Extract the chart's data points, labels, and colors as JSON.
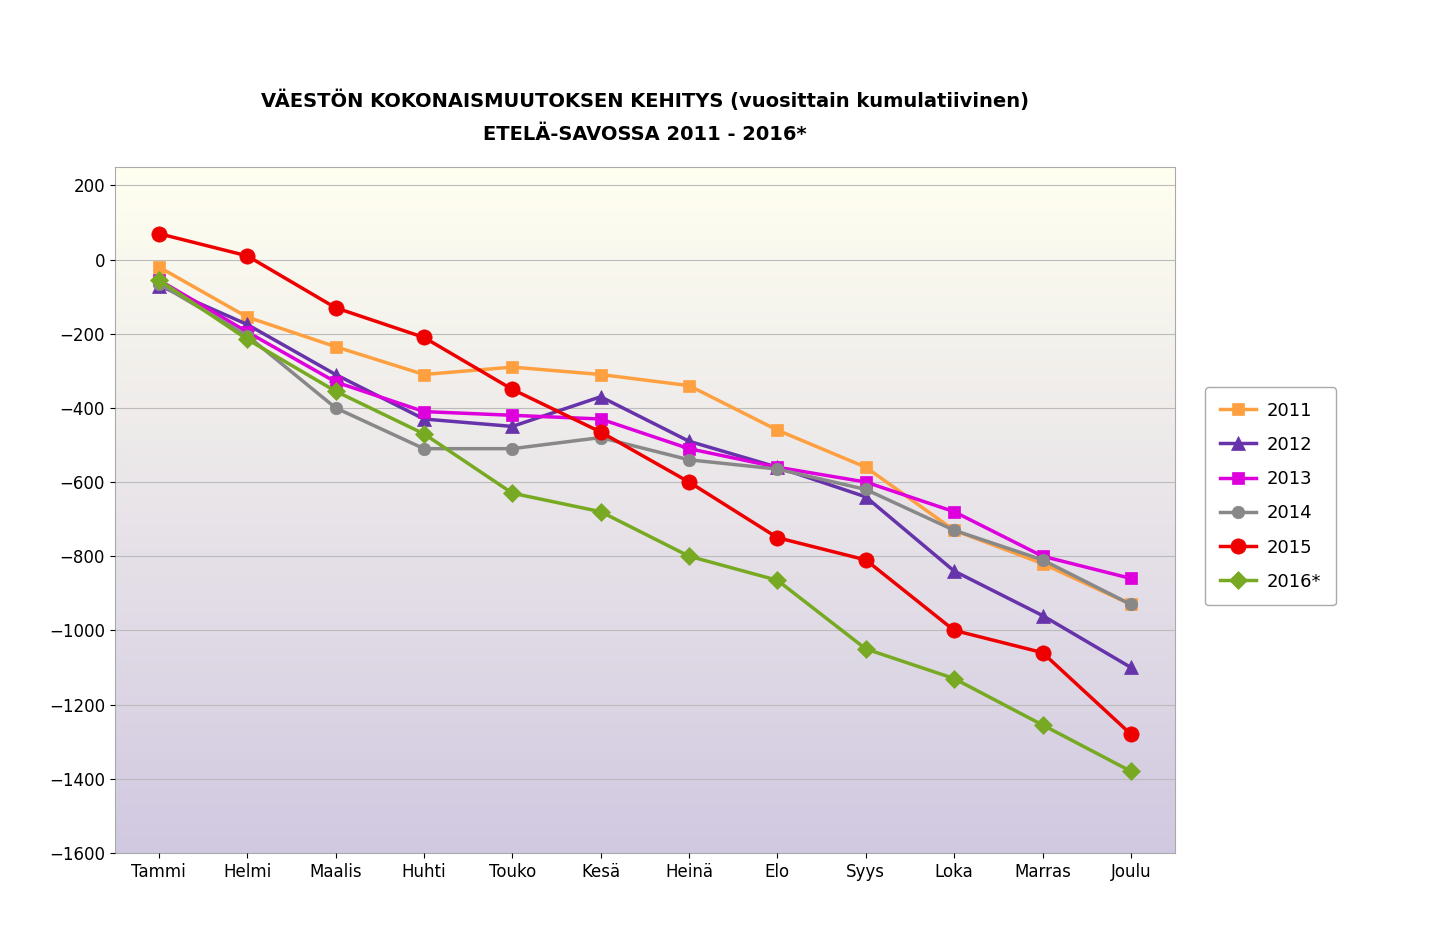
{
  "title_line1": "VÄESTÖN KOKONAISMUUTOKSEN KEHITYS (vuosittain kumulatiivinen)",
  "title_line2": "ETELÄ-SAVOSSA 2011 - 2016*",
  "months": [
    "Tammi",
    "Helmi",
    "Maalis",
    "Huhti",
    "Touko",
    "Kesä",
    "Heinä",
    "Elo",
    "Syys",
    "Loka",
    "Marras",
    "Joulu"
  ],
  "series": {
    "2011": {
      "color": "#FFA040",
      "marker": "s",
      "markersize": 9,
      "values": [
        -20,
        -155,
        -235,
        -310,
        -290,
        -310,
        -340,
        -460,
        -560,
        -730,
        -820,
        -930
      ]
    },
    "2012": {
      "color": "#6633AA",
      "marker": "^",
      "markersize": 10,
      "values": [
        -70,
        -175,
        -310,
        -430,
        -450,
        -370,
        -490,
        -560,
        -640,
        -840,
        -960,
        -1100
      ]
    },
    "2013": {
      "color": "#DD00DD",
      "marker": "s",
      "markersize": 9,
      "values": [
        -55,
        -195,
        -330,
        -410,
        -420,
        -430,
        -510,
        -560,
        -600,
        -680,
        -800,
        -860
      ]
    },
    "2014": {
      "color": "#888888",
      "marker": "o",
      "markersize": 9,
      "values": [
        -65,
        -205,
        -400,
        -510,
        -510,
        -480,
        -540,
        -565,
        -620,
        -730,
        -810,
        -930
      ]
    },
    "2015": {
      "color": "#EE0000",
      "marker": "o",
      "markersize": 11,
      "values": [
        70,
        10,
        -130,
        -210,
        -350,
        -465,
        -600,
        -750,
        -810,
        -1000,
        -1060,
        -1280
      ]
    },
    "2016*": {
      "color": "#77AA22",
      "marker": "D",
      "markersize": 9,
      "values": [
        -55,
        -215,
        -355,
        -470,
        -630,
        -680,
        -800,
        -865,
        -1050,
        -1130,
        -1255,
        -1380
      ]
    }
  },
  "ylim": [
    -1600,
    250
  ],
  "yticks": [
    200,
    0,
    -200,
    -400,
    -600,
    -800,
    -1000,
    -1200,
    -1400,
    -1600
  ],
  "legend_order": [
    "2011",
    "2012",
    "2013",
    "2014",
    "2015",
    "2016*"
  ],
  "bg_top_color": "#FFFFF0",
  "bg_bottom_color": "#D0C8E0",
  "grid_color": "#BBBBBB",
  "plot_bg": "#FFFFFF",
  "fig_bg": "#FFFFFF"
}
